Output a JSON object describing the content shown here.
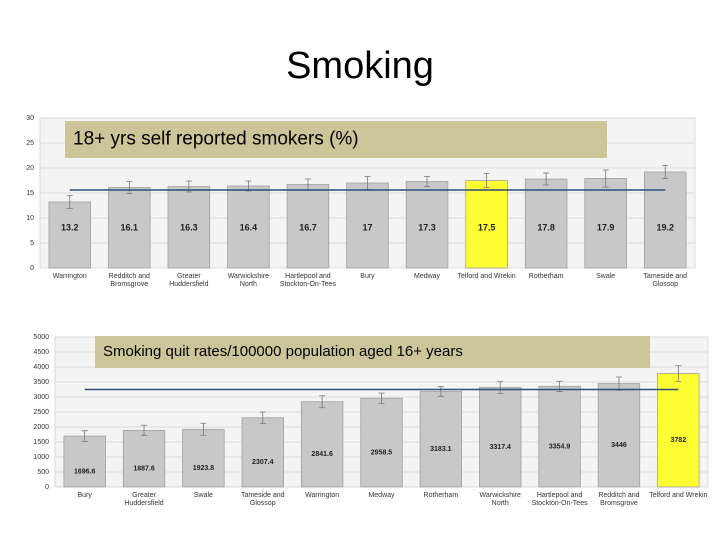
{
  "title": "Smoking",
  "chart_data": [
    {
      "type": "bar",
      "annotation": "18+ yrs self reported smokers (%)",
      "categories": [
        "Warrington",
        "Redditch and Bromsgrove",
        "Greater Huddersfield",
        "Warwickshire North",
        "Hartlepool and Stockton-On-Tees",
        "Bury",
        "Medway",
        "Telford and Wrekin",
        "Rotherham",
        "Swale",
        "Tameside and Glossop"
      ],
      "values": [
        13.2,
        16.1,
        16.3,
        16.4,
        16.7,
        17,
        17.3,
        17.5,
        17.8,
        17.9,
        19.2
      ],
      "errors": [
        1.3,
        1.2,
        1.1,
        1.0,
        1.1,
        1.3,
        1.0,
        1.4,
        1.2,
        1.7,
        1.3
      ],
      "colors": [
        "#c8c8c8",
        "#c8c8c8",
        "#c8c8c8",
        "#c8c8c8",
        "#c8c8c8",
        "#c8c8c8",
        "#c8c8c8",
        "#ffff33",
        "#c8c8c8",
        "#c8c8c8",
        "#c8c8c8"
      ],
      "reference_line": 15.6,
      "reference_color": "#2e4a80",
      "ylim": [
        0,
        30
      ],
      "yticks": [
        0,
        5,
        10,
        15,
        20,
        25,
        30
      ],
      "grid": true
    },
    {
      "type": "bar",
      "annotation": "Smoking quit rates/100000 population aged 16+ years",
      "categories": [
        "Bury",
        "Greater Huddersfield",
        "Swale",
        "Tameside and Glossop",
        "Warrington",
        "Medway",
        "Rotherham",
        "Warwickshire North",
        "Hartlepool and Stockton-On-Tees",
        "Redditch and Bromsgrove",
        "Telford and Wrekin"
      ],
      "values": [
        1696.6,
        1887.6,
        1923.8,
        2307.4,
        2841.6,
        2958.5,
        3183.1,
        3317.4,
        3354.9,
        3446,
        3782
      ],
      "errors": [
        180,
        170,
        200,
        190,
        200,
        170,
        160,
        200,
        170,
        220,
        260
      ],
      "colors": [
        "#c8c8c8",
        "#c8c8c8",
        "#c8c8c8",
        "#c8c8c8",
        "#c8c8c8",
        "#c8c8c8",
        "#c8c8c8",
        "#c8c8c8",
        "#c8c8c8",
        "#c8c8c8",
        "#ffff33"
      ],
      "reference_line": 3250,
      "reference_color": "#2e4a80",
      "ylim": [
        0,
        5000
      ],
      "yticks": [
        0,
        500,
        1000,
        1500,
        2000,
        2500,
        3000,
        3500,
        4000,
        4500,
        5000
      ],
      "grid": true
    }
  ]
}
